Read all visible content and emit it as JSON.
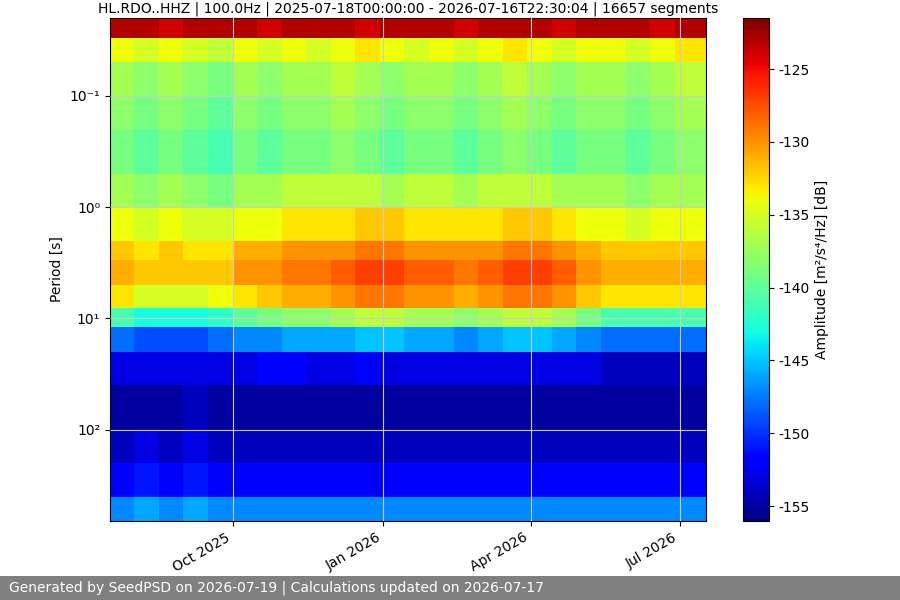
{
  "chart_data": {
    "type": "heatmap",
    "title": "HL.RDO..HHZ | 100.0Hz | 2025-07-18T00:00:00 - 2026-07-16T22:30:04 | 16657 segments",
    "y_label": "Period [s]",
    "footer": "Generated by SeedPSD on 2026-07-19 | Calculations updated on 2026-07-17",
    "log": "y",
    "grid": true,
    "color": "jet",
    "xlim": [
      "2025-07-18T00:00:00",
      "2026-07-16T22:30:04"
    ],
    "xticks": [
      {
        "value": "2025-10-01",
        "label": "Oct 2025"
      },
      {
        "value": "2026-01-01",
        "label": "Jan 2026"
      },
      {
        "value": "2026-04-01",
        "label": "Apr 2026"
      },
      {
        "value": "2026-07-01",
        "label": "Jul 2026"
      }
    ],
    "ylim": [
      660,
      0.02
    ],
    "yticks": [
      {
        "value": 0.1,
        "label": "10⁻¹"
      },
      {
        "value": 1,
        "label": "10⁰"
      },
      {
        "value": 10,
        "label": "10¹"
      },
      {
        "value": 100,
        "label": "10²"
      }
    ],
    "time_edges": [
      "2025-07-18T00:00:00",
      "2025-08-02",
      "2025-08-17",
      "2025-09-01",
      "2025-09-16",
      "2025-10-01",
      "2025-10-16",
      "2025-10-31",
      "2025-11-15",
      "2025-11-30",
      "2025-12-15",
      "2025-12-30",
      "2026-01-14",
      "2026-01-29",
      "2026-02-13",
      "2026-02-28",
      "2026-03-15",
      "2026-03-30",
      "2026-04-14",
      "2026-04-29",
      "2026-05-14",
      "2026-05-29",
      "2026-06-13",
      "2026-06-28",
      "2026-07-16T22:30:04"
    ],
    "period_edges": [
      0.02,
      0.03,
      0.05,
      0.1,
      0.2,
      0.5,
      1,
      2,
      3,
      5,
      8,
      12,
      20,
      40,
      100,
      200,
      400,
      660
    ],
    "cells": [
      [
        -123,
        -123,
        -124,
        -123,
        -123,
        -123,
        -124,
        -123,
        -123,
        -123,
        -124,
        -123,
        -123,
        -123,
        -124,
        -123,
        -123,
        -123,
        -124,
        -123,
        -123,
        -123,
        -124,
        -123
      ],
      [
        -134,
        -135,
        -134,
        -135,
        -136,
        -134,
        -135,
        -134,
        -135,
        -134,
        -133,
        -134,
        -135,
        -134,
        -135,
        -134,
        -133,
        -134,
        -135,
        -134,
        -134,
        -135,
        -134,
        -133
      ],
      [
        -137,
        -138,
        -137,
        -138,
        -139,
        -137,
        -138,
        -137,
        -137,
        -136,
        -137,
        -138,
        -137,
        -137,
        -138,
        -137,
        -136,
        -137,
        -138,
        -137,
        -137,
        -138,
        -137,
        -136
      ],
      [
        -138,
        -139,
        -138,
        -139,
        -140,
        -138,
        -139,
        -138,
        -138,
        -137,
        -138,
        -139,
        -138,
        -138,
        -139,
        -138,
        -137,
        -138,
        -139,
        -138,
        -138,
        -139,
        -138,
        -137
      ],
      [
        -139,
        -140,
        -139,
        -140,
        -141,
        -139,
        -140,
        -139,
        -139,
        -138,
        -139,
        -140,
        -139,
        -139,
        -140,
        -139,
        -138,
        -139,
        -140,
        -139,
        -139,
        -140,
        -139,
        -138
      ],
      [
        -137,
        -138,
        -137,
        -138,
        -139,
        -137,
        -137,
        -136,
        -136,
        -136,
        -136,
        -137,
        -136,
        -136,
        -137,
        -136,
        -136,
        -136,
        -137,
        -137,
        -137,
        -138,
        -137,
        -137
      ],
      [
        -134,
        -135,
        -134,
        -135,
        -135,
        -134,
        -134,
        -133,
        -133,
        -133,
        -132,
        -132,
        -133,
        -133,
        -133,
        -133,
        -132,
        -132,
        -133,
        -134,
        -134,
        -135,
        -134,
        -134
      ],
      [
        -132,
        -133,
        -132,
        -133,
        -133,
        -131,
        -131,
        -130,
        -130,
        -130,
        -129,
        -129,
        -130,
        -130,
        -130,
        -130,
        -129,
        -129,
        -130,
        -131,
        -132,
        -132,
        -132,
        -132
      ],
      [
        -131,
        -132,
        -132,
        -132,
        -132,
        -130,
        -130,
        -129,
        -129,
        -128,
        -127,
        -127,
        -128,
        -128,
        -129,
        -128,
        -127,
        -127,
        -128,
        -130,
        -131,
        -131,
        -131,
        -131
      ],
      [
        -133,
        -135,
        -135,
        -135,
        -134,
        -133,
        -132,
        -131,
        -131,
        -130,
        -129,
        -129,
        -130,
        -130,
        -131,
        -130,
        -129,
        -129,
        -130,
        -132,
        -133,
        -133,
        -133,
        -133
      ],
      [
        -141,
        -143,
        -143,
        -143,
        -142,
        -140,
        -139,
        -138,
        -138,
        -137,
        -136,
        -136,
        -137,
        -137,
        -138,
        -137,
        -136,
        -136,
        -137,
        -139,
        -141,
        -141,
        -141,
        -141
      ],
      [
        -148,
        -149,
        -149,
        -149,
        -148,
        -147,
        -147,
        -146,
        -146,
        -146,
        -145,
        -145,
        -146,
        -146,
        -147,
        -146,
        -145,
        -145,
        -146,
        -147,
        -148,
        -148,
        -148,
        -148
      ],
      [
        -153,
        -153,
        -153,
        -153,
        -153,
        -153,
        -152,
        -152,
        -153,
        -153,
        -152,
        -153,
        -153,
        -153,
        -153,
        -153,
        -153,
        -153,
        -153,
        -153,
        -154,
        -154,
        -154,
        -154
      ],
      [
        -155,
        -155,
        -155,
        -154,
        -155,
        -155,
        -155,
        -155,
        -155,
        -155,
        -155,
        -155,
        -155,
        -155,
        -155,
        -155,
        -155,
        -155,
        -155,
        -155,
        -155,
        -155,
        -155,
        -155
      ],
      [
        -154,
        -153,
        -154,
        -153,
        -154,
        -154,
        -154,
        -154,
        -154,
        -154,
        -154,
        -154,
        -154,
        -154,
        -154,
        -154,
        -154,
        -154,
        -154,
        -154,
        -154,
        -154,
        -154,
        -154
      ],
      [
        -152,
        -151,
        -152,
        -151,
        -152,
        -152,
        -152,
        -152,
        -152,
        -152,
        -152,
        -152,
        -152,
        -152,
        -152,
        -152,
        -152,
        -152,
        -152,
        -152,
        -152,
        -152,
        -152,
        -152
      ],
      [
        -147,
        -146,
        -147,
        -146,
        -147,
        -147,
        -147,
        -147,
        -147,
        -147,
        -147,
        -147,
        -147,
        -147,
        -147,
        -147,
        -147,
        -147,
        -147,
        -147,
        -147,
        -147,
        -147,
        -147
      ]
    ],
    "colorbar_label": "Amplitude [m²/s⁴/Hz] [dB]",
    "colorbar_range": [
      -156,
      -121.5
    ],
    "colorbar_ticks": [
      -155,
      -150,
      -145,
      -140,
      -135,
      -130,
      -125
    ]
  }
}
